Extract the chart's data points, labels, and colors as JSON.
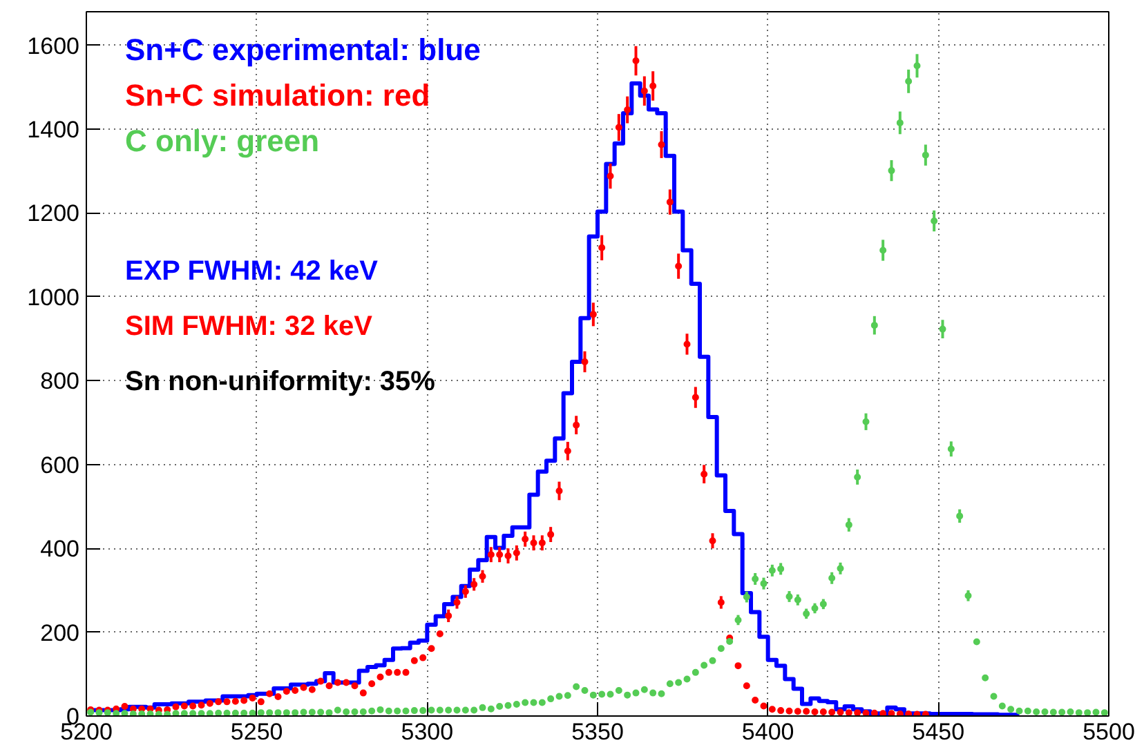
{
  "chart_data": {
    "type": "scatter",
    "x": [
      5201.25,
      5203.75,
      5206.25,
      5208.75,
      5211.25,
      5213.75,
      5216.25,
      5218.75,
      5221.25,
      5223.75,
      5226.25,
      5228.75,
      5231.25,
      5233.75,
      5236.25,
      5238.75,
      5241.25,
      5243.75,
      5246.25,
      5248.75,
      5251.25,
      5253.75,
      5256.25,
      5258.75,
      5261.25,
      5263.75,
      5266.25,
      5268.75,
      5271.25,
      5273.75,
      5276.25,
      5278.75,
      5281.25,
      5283.75,
      5286.25,
      5288.75,
      5291.25,
      5293.75,
      5296.25,
      5298.75,
      5301.25,
      5303.75,
      5306.25,
      5308.75,
      5311.25,
      5313.75,
      5316.25,
      5318.75,
      5321.25,
      5323.75,
      5326.25,
      5328.75,
      5331.25,
      5333.75,
      5336.25,
      5338.75,
      5341.25,
      5343.75,
      5346.25,
      5348.75,
      5351.25,
      5353.75,
      5356.25,
      5358.75,
      5361.25,
      5363.75,
      5366.25,
      5368.75,
      5371.25,
      5373.75,
      5376.25,
      5378.75,
      5381.25,
      5383.75,
      5386.25,
      5388.75,
      5391.25,
      5393.75,
      5396.25,
      5398.75,
      5401.25,
      5403.75,
      5406.25,
      5408.75,
      5411.25,
      5413.75,
      5416.25,
      5418.75,
      5421.25,
      5423.75,
      5426.25,
      5428.75,
      5431.25,
      5433.75,
      5436.25,
      5438.75,
      5441.25,
      5443.75,
      5446.25,
      5448.75,
      5451.25,
      5453.75,
      5456.25,
      5458.75,
      5461.25,
      5463.75,
      5466.25,
      5468.75,
      5471.25,
      5473.75,
      5476.25,
      5478.75,
      5481.25,
      5483.75,
      5486.25,
      5488.75,
      5491.25,
      5493.75,
      5496.25,
      5498.75
    ],
    "xlim": [
      5200,
      5500
    ],
    "xticks": [
      5200,
      5250,
      5300,
      5350,
      5400,
      5450,
      5500
    ],
    "ylim": [
      0,
      1680
    ],
    "yticks": [
      0,
      200,
      400,
      600,
      800,
      1000,
      1200,
      1400,
      1600
    ],
    "grid": true,
    "legend": "top left",
    "marker": "circle",
    "series": [
      {
        "name": "Sn+C experimental: blue",
        "type": "step",
        "marker": "none",
        "color": "#0000ff",
        "values": [
          14,
          14,
          14,
          14,
          16,
          22,
          22,
          20,
          28,
          28,
          30,
          30,
          34,
          34,
          37,
          37,
          47,
          47,
          47,
          50,
          53,
          53,
          66,
          66,
          75,
          75,
          77,
          83,
          102,
          80,
          80,
          80,
          108,
          117,
          121,
          134,
          161,
          162,
          175,
          180,
          218,
          238,
          267,
          284,
          310,
          349,
          372,
          427,
          401,
          430,
          450,
          450,
          528,
          583,
          609,
          662,
          770,
          845,
          949,
          1144,
          1203,
          1317,
          1366,
          1438,
          1509,
          1480,
          1447,
          1438,
          1336,
          1203,
          1111,
          1031,
          857,
          713,
          574,
          489,
          434,
          293,
          248,
          189,
          134,
          120,
          88,
          65,
          29,
          42,
          36,
          33,
          16,
          23,
          16,
          11,
          6,
          6,
          20,
          16,
          6,
          6,
          6,
          5,
          5,
          5,
          5,
          5,
          4,
          4,
          4,
          3,
          3,
          3,
          null,
          null,
          null,
          null,
          null,
          null,
          null,
          null,
          null,
          null
        ]
      },
      {
        "name": "Sn+C simulation: red",
        "color": "#ff0000",
        "values": [
          15,
          14,
          14,
          17,
          23,
          17,
          17,
          17,
          14,
          15,
          22,
          24,
          24,
          26,
          30,
          34,
          34,
          35,
          37,
          43,
          34,
          53,
          46,
          59,
          61,
          68,
          63,
          83,
          72,
          80,
          80,
          72,
          55,
          77,
          93,
          104,
          104,
          104,
          132,
          139,
          161,
          196,
          239,
          271,
          297,
          314,
          333,
          385,
          385,
          382,
          389,
          422,
          413,
          413,
          433,
          537,
          632,
          694,
          845,
          958,
          1117,
          1288,
          1404,
          1446,
          1563,
          1491,
          1503,
          1363,
          1226,
          1073,
          887,
          760,
          577,
          418,
          271,
          186,
          120,
          72,
          38,
          24,
          16,
          13,
          12,
          11,
          11,
          10,
          10,
          9,
          9,
          8,
          8,
          7,
          7,
          6,
          6,
          5,
          5,
          4,
          4,
          null,
          null,
          null,
          null,
          null,
          null,
          null,
          null,
          null,
          null,
          null,
          null,
          null,
          null,
          null,
          null,
          null,
          null,
          null,
          null,
          null
        ],
        "errors": [
          null,
          null,
          null,
          null,
          null,
          null,
          null,
          null,
          null,
          null,
          null,
          null,
          null,
          null,
          null,
          null,
          null,
          null,
          null,
          null,
          null,
          null,
          null,
          null,
          null,
          null,
          null,
          null,
          null,
          null,
          null,
          null,
          null,
          null,
          null,
          null,
          null,
          null,
          null,
          null,
          null,
          null,
          15,
          15,
          15,
          15,
          15,
          18,
          18,
          18,
          18,
          18,
          18,
          18,
          18,
          22,
          22,
          22,
          25,
          28,
          30,
          30,
          32,
          32,
          35,
          35,
          35,
          32,
          30,
          30,
          25,
          25,
          22,
          18,
          15,
          null,
          null,
          null,
          null,
          null,
          null,
          null,
          null,
          null,
          null,
          null,
          null,
          null,
          null,
          null,
          null,
          null,
          null,
          null,
          null,
          null,
          null,
          null,
          null,
          null,
          null,
          null,
          null,
          null,
          null,
          null,
          null,
          null,
          null,
          null,
          null,
          null,
          null,
          null,
          null,
          null,
          null,
          null,
          null,
          null
        ]
      },
      {
        "name": "C only: green",
        "color": "#55cc55",
        "values": [
          9,
          8,
          8,
          6,
          6,
          5,
          5,
          5,
          4,
          4,
          6,
          6,
          6,
          6,
          6,
          7,
          7,
          7,
          7,
          7,
          8,
          8,
          8,
          8,
          8,
          9,
          9,
          9,
          8,
          14,
          10,
          10,
          10,
          12,
          15,
          12,
          12,
          12,
          13,
          13,
          14,
          14,
          14,
          14,
          14,
          14,
          20,
          17,
          23,
          25,
          28,
          32,
          32,
          32,
          41,
          47,
          49,
          70,
          61,
          50,
          52,
          52,
          61,
          50,
          55,
          63,
          55,
          53,
          77,
          80,
          88,
          104,
          121,
          132,
          161,
          178,
          229,
          284,
          327,
          316,
          347,
          351,
          285,
          277,
          244,
          257,
          267,
          329,
          352,
          456,
          570,
          702,
          932,
          1111,
          1301,
          1415,
          1514,
          1551,
          1338,
          1181,
          923,
          637,
          477,
          287,
          177,
          91,
          47,
          24,
          16,
          12,
          12,
          10,
          10,
          9,
          9,
          10,
          8,
          8,
          9,
          8
        ],
        "errors": [
          null,
          null,
          null,
          null,
          null,
          null,
          null,
          null,
          null,
          null,
          null,
          null,
          null,
          null,
          null,
          null,
          null,
          null,
          null,
          null,
          null,
          null,
          null,
          null,
          null,
          null,
          null,
          null,
          null,
          null,
          null,
          null,
          null,
          null,
          null,
          null,
          null,
          null,
          null,
          null,
          null,
          null,
          null,
          null,
          null,
          null,
          null,
          null,
          null,
          null,
          null,
          null,
          null,
          null,
          null,
          null,
          null,
          null,
          null,
          null,
          null,
          null,
          null,
          null,
          null,
          null,
          null,
          null,
          null,
          null,
          null,
          null,
          null,
          null,
          null,
          null,
          12,
          13,
          14,
          14,
          14,
          14,
          13,
          13,
          12,
          12,
          12,
          14,
          14,
          16,
          18,
          20,
          22,
          25,
          25,
          27,
          28,
          28,
          25,
          25,
          22,
          18,
          16,
          13,
          null,
          null,
          null,
          null,
          null,
          null,
          null,
          null,
          null,
          null,
          null,
          null,
          null,
          null,
          null,
          null
        ]
      }
    ],
    "annotations": [
      "EXP FWHM: 42 keV",
      "SIM FWHM: 32 keV",
      "Sn non-uniformity: 35%"
    ]
  }
}
